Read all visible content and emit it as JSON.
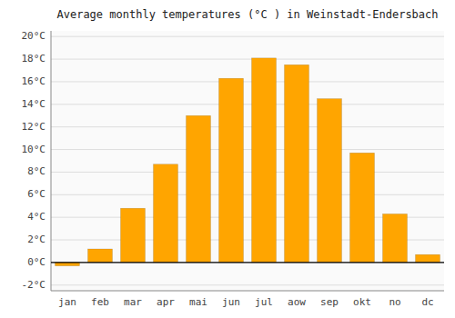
{
  "chart_data": {
    "type": "bar",
    "title": "Average monthly temperatures (°C ) in Weinstadt-Endersbach",
    "categories": [
      "jan",
      "feb",
      "mar",
      "apr",
      "mai",
      "jun",
      "jul",
      "aow",
      "sep",
      "okt",
      "no",
      "dc"
    ],
    "values": [
      -0.3,
      1.2,
      4.8,
      8.7,
      13.0,
      16.3,
      18.1,
      17.5,
      14.5,
      9.7,
      4.3,
      0.7
    ],
    "color": "#FFA500",
    "ylim": [
      -2.5,
      20.5
    ],
    "yticks": [
      {
        "value": -2,
        "label": "-2°C"
      },
      {
        "value": 0,
        "label": "0°C"
      },
      {
        "value": 2,
        "label": "2°C"
      },
      {
        "value": 4,
        "label": "4°C"
      },
      {
        "value": 6,
        "label": "6°C"
      },
      {
        "value": 8,
        "label": "8°C"
      },
      {
        "value": 10,
        "label": "10°C"
      },
      {
        "value": 12,
        "label": "12°C"
      },
      {
        "value": 14,
        "label": "14°C"
      },
      {
        "value": 16,
        "label": "16°C"
      },
      {
        "value": 18,
        "label": "18°C"
      },
      {
        "value": 20,
        "label": "20°C"
      }
    ],
    "grid": true
  }
}
